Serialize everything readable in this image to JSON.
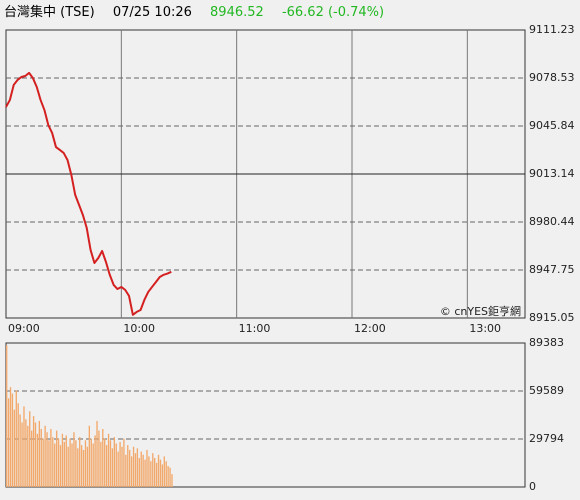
{
  "header": {
    "name": "台灣集中 (TSE)",
    "time": "07/25 10:26",
    "price": "8946.52",
    "change": "-66.62 (-0.74%)"
  },
  "watermark": "© cnYES鉅亨網",
  "chart_data": [
    {
      "type": "line",
      "color": "#d42020",
      "xlim": [
        "09:00",
        "13:30"
      ],
      "xticks": [
        "09:00",
        "10:00",
        "11:00",
        "12:00",
        "13:00"
      ],
      "ylim": [
        8915.05,
        9111.23
      ],
      "yticks": [
        8915.05,
        8947.75,
        8980.44,
        9013.14,
        9045.84,
        9078.53,
        9111.23
      ],
      "reference": 9013.14,
      "x": [
        "09:00",
        "09:02",
        "09:04",
        "09:06",
        "09:08",
        "09:10",
        "09:12",
        "09:14",
        "09:16",
        "09:18",
        "09:20",
        "09:22",
        "09:24",
        "09:26",
        "09:28",
        "09:30",
        "09:32",
        "09:34",
        "09:36",
        "09:38",
        "09:40",
        "09:42",
        "09:44",
        "09:46",
        "09:48",
        "09:50",
        "09:52",
        "09:54",
        "09:56",
        "09:58",
        "10:00",
        "10:02",
        "10:04",
        "10:06",
        "10:08",
        "10:10",
        "10:12",
        "10:14",
        "10:16",
        "10:18",
        "10:20",
        "10:22",
        "10:24",
        "10:26"
      ],
      "values": [
        9058.8,
        9063.5,
        9073.8,
        9077.2,
        9079.2,
        9079.9,
        9082.0,
        9078.5,
        9072.4,
        9063.5,
        9056.7,
        9046.5,
        9041.1,
        9031.5,
        9029.5,
        9027.5,
        9022.7,
        9012.5,
        8998.9,
        8992.1,
        8985.2,
        8976.4,
        8961.4,
        8952.5,
        8955.9,
        8960.7,
        8953.2,
        8944.4,
        8937.6,
        8934.8,
        8936.2,
        8934.2,
        8930.1,
        8917.2,
        8919.2,
        8920.5,
        8927.4,
        8932.8,
        8936.2,
        8939.6,
        8943.0,
        8944.5,
        8945.3,
        8946.52
      ]
    },
    {
      "type": "bar",
      "color": "#f2a86a",
      "xlim": [
        "09:00",
        "13:30"
      ],
      "ylim": [
        0,
        89383
      ],
      "yticks": [
        0,
        29794,
        59589,
        89383
      ],
      "x": [
        "09:00",
        "09:01",
        "09:02",
        "09:03",
        "09:04",
        "09:05",
        "09:06",
        "09:07",
        "09:08",
        "09:09",
        "09:10",
        "09:11",
        "09:12",
        "09:13",
        "09:14",
        "09:15",
        "09:16",
        "09:17",
        "09:18",
        "09:19",
        "09:20",
        "09:21",
        "09:22",
        "09:23",
        "09:24",
        "09:25",
        "09:26",
        "09:27",
        "09:28",
        "09:29",
        "09:30",
        "09:31",
        "09:32",
        "09:33",
        "09:34",
        "09:35",
        "09:36",
        "09:37",
        "09:38",
        "09:39",
        "09:40",
        "09:41",
        "09:42",
        "09:43",
        "09:44",
        "09:45",
        "09:46",
        "09:47",
        "09:48",
        "09:49",
        "09:50",
        "09:51",
        "09:52",
        "09:53",
        "09:54",
        "09:55",
        "09:56",
        "09:57",
        "09:58",
        "09:59",
        "10:00",
        "10:01",
        "10:02",
        "10:03",
        "10:04",
        "10:05",
        "10:06",
        "10:07",
        "10:08",
        "10:09",
        "10:10",
        "10:11",
        "10:12",
        "10:13",
        "10:14",
        "10:15",
        "10:16",
        "10:17",
        "10:18",
        "10:19",
        "10:20",
        "10:21",
        "10:22",
        "10:23",
        "10:24",
        "10:25",
        "10:26"
      ],
      "values": [
        88000,
        55000,
        62000,
        58000,
        48000,
        60000,
        52000,
        45000,
        40000,
        50000,
        42000,
        38000,
        47000,
        35000,
        44000,
        40000,
        33000,
        41000,
        36000,
        30000,
        38000,
        34000,
        29000,
        36000,
        31000,
        27000,
        35000,
        30000,
        26000,
        33000,
        28000,
        32000,
        25000,
        30000,
        27000,
        34000,
        29000,
        24000,
        31000,
        26000,
        23000,
        29000,
        25000,
        38000,
        30000,
        27000,
        32000,
        41000,
        35000,
        28000,
        36000,
        30000,
        26000,
        33000,
        29000,
        24000,
        31000,
        27000,
        22000,
        28000,
        25000,
        30000,
        20000,
        26000,
        23000,
        19000,
        25000,
        21000,
        24000,
        18000,
        22000,
        20000,
        17000,
        23000,
        19000,
        16000,
        21000,
        18000,
        15000,
        20000,
        17000,
        14000,
        19000,
        16000,
        13000,
        12000,
        8000
      ]
    }
  ]
}
